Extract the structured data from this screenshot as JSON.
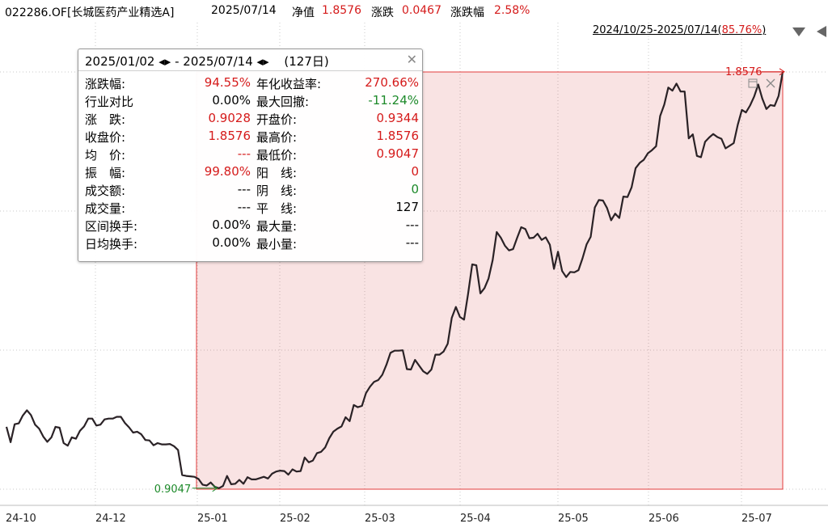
{
  "header": {
    "fund": "022286.OF[长城医药产业精选A]",
    "date": "2025/07/14",
    "nav_label": "净值",
    "nav_value": "1.8576",
    "chg_label": "涨跌",
    "chg_value": "0.0467",
    "pct_label": "涨跌幅",
    "pct_value": "2.58%"
  },
  "range_selector": {
    "text_prefix": "2024/10/25-2025/07/14(",
    "pct": "85.76%",
    "text_suffix": ")"
  },
  "panel": {
    "start_date": "2025/01/02",
    "end_date": "2025/07/14",
    "dash": "-",
    "days": "(127日)",
    "rows": [
      {
        "l1": "涨跌幅:",
        "v1": "94.55%",
        "c1": "red",
        "l2": "年化收益率:",
        "v2": "270.66%",
        "c2": "red"
      },
      {
        "l1": "行业对比",
        "v1": "0.00%",
        "c1": "black",
        "l2": "最大回撤:",
        "v2": "-11.24%",
        "c2": "green"
      },
      {
        "l1": "涨　跌:",
        "v1": "0.9028",
        "c1": "red",
        "l2": "开盘价:",
        "v2": "0.9344",
        "c2": "red"
      },
      {
        "l1": "收盘价:",
        "v1": "1.8576",
        "c1": "red",
        "l2": "最高价:",
        "v2": "1.8576",
        "c2": "red"
      },
      {
        "l1": "均　价:",
        "v1": "---",
        "c1": "red",
        "l2": "最低价:",
        "v2": "0.9047",
        "c2": "red"
      },
      {
        "l1": "振　幅:",
        "v1": "99.80%",
        "c1": "red",
        "l2": "阳　线:",
        "v2": "0",
        "c2": "red"
      },
      {
        "l1": "成交额:",
        "v1": "---",
        "c1": "black",
        "l2": "阴　线:",
        "v2": "0",
        "c2": "green"
      },
      {
        "l1": "成交量:",
        "v1": "---",
        "c1": "black",
        "l2": "平　线:",
        "v2": "127",
        "c2": "black"
      },
      {
        "l1": "区间换手:",
        "v1": "0.00%",
        "c1": "black",
        "l2": "最大量:",
        "v2": "---",
        "c2": "black"
      },
      {
        "l1": "日均换手:",
        "v1": "0.00%",
        "c1": "black",
        "l2": "最小量:",
        "v2": "---",
        "c2": "black"
      }
    ]
  },
  "chart_data": {
    "type": "line",
    "title": "",
    "x_ticks": [
      "24-10",
      "24-12",
      "25-01",
      "25-02",
      "25-03",
      "25-04",
      "25-05",
      "25-06",
      "25-07"
    ],
    "y_range": [
      0.9047,
      1.8576
    ],
    "max_label": "1.8576",
    "min_label": "0.9047",
    "selection": {
      "start": "2025/01/02",
      "end": "2025/07/14"
    },
    "series": [
      {
        "values": [
          1.047,
          1.012,
          1.053,
          1.055,
          1.073,
          1.085,
          1.074,
          1.052,
          1.043,
          1.025,
          1.013,
          1.023,
          1.047,
          1.045,
          1.01,
          1.004,
          1.023,
          1.02,
          1.038,
          1.048,
          1.066,
          1.066,
          1.05,
          1.052,
          1.064,
          1.066,
          1.066,
          1.07,
          1.07,
          1.056,
          1.046,
          1.034,
          1.036,
          1.03,
          1.017,
          1.016,
          1.005,
          1.01,
          1.007,
          1.007,
          1.008,
          1.003,
          0.994,
          0.937,
          0.935,
          0.934,
          0.933,
          0.928,
          0.915,
          0.913,
          0.92,
          0.91,
          0.907,
          0.912,
          0.935,
          0.916,
          0.917,
          0.926,
          0.917,
          0.932,
          0.927,
          0.927,
          0.93,
          0.933,
          0.929,
          0.94,
          0.945,
          0.947,
          0.946,
          0.938,
          0.95,
          0.945,
          0.946,
          0.977,
          0.966,
          0.97,
          0.987,
          0.99,
          1.0,
          1.021,
          1.036,
          1.043,
          1.048,
          1.069,
          1.06,
          1.097,
          1.092,
          1.095,
          1.124,
          1.139,
          1.15,
          1.154,
          1.166,
          1.189,
          1.216,
          1.221,
          1.221,
          1.222,
          1.179,
          1.178,
          1.2,
          1.187,
          1.174,
          1.168,
          1.178,
          1.212,
          1.212,
          1.219,
          1.237,
          1.296,
          1.321,
          1.298,
          1.292,
          1.351,
          1.418,
          1.416,
          1.352,
          1.364,
          1.386,
          1.428,
          1.492,
          1.479,
          1.461,
          1.45,
          1.453,
          1.479,
          1.503,
          1.499,
          1.478,
          1.479,
          1.488,
          1.474,
          1.48,
          1.463,
          1.408,
          1.447,
          1.403,
          1.389,
          1.401,
          1.4,
          1.405,
          1.432,
          1.464,
          1.481,
          1.548,
          1.565,
          1.564,
          1.547,
          1.519,
          1.534,
          1.524,
          1.573,
          1.572,
          1.594,
          1.638,
          1.65,
          1.657,
          1.672,
          1.679,
          1.688,
          1.757,
          1.783,
          1.822,
          1.815,
          1.831,
          1.813,
          1.813,
          1.706,
          1.715,
          1.666,
          1.663,
          1.698,
          1.708,
          1.716,
          1.709,
          1.705,
          1.683,
          1.689,
          1.695,
          1.737,
          1.771,
          1.765,
          1.781,
          1.801,
          1.829,
          1.797,
          1.773,
          1.782,
          1.78,
          1.803,
          1.858
        ]
      }
    ]
  }
}
